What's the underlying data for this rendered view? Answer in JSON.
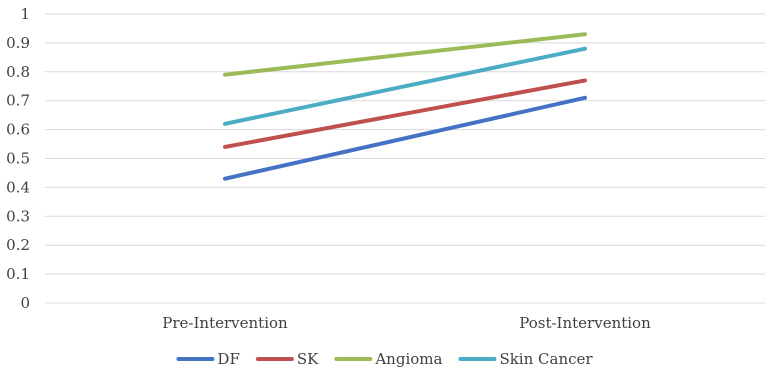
{
  "chart_data": {
    "type": "line",
    "categories": [
      "Pre-Intervention",
      "Post-Intervention"
    ],
    "series": [
      {
        "name": "DF",
        "values": [
          0.43,
          0.71
        ],
        "color": "#4472c4"
      },
      {
        "name": "SK",
        "values": [
          0.54,
          0.77
        ],
        "color": "#c0504d"
      },
      {
        "name": "Angioma",
        "values": [
          0.79,
          0.93
        ],
        "color": "#9bbb59"
      },
      {
        "name": "Skin Cancer",
        "values": [
          0.62,
          0.88
        ],
        "color": "#4bacc6"
      }
    ],
    "ylim": [
      0,
      1
    ],
    "yticks": [
      "0",
      "0.1",
      "0.2",
      "0.3",
      "0.4",
      "0.5",
      "0.6",
      "0.7",
      "0.8",
      "0.9",
      "1"
    ],
    "grid": true,
    "legend_position": "bottom"
  }
}
